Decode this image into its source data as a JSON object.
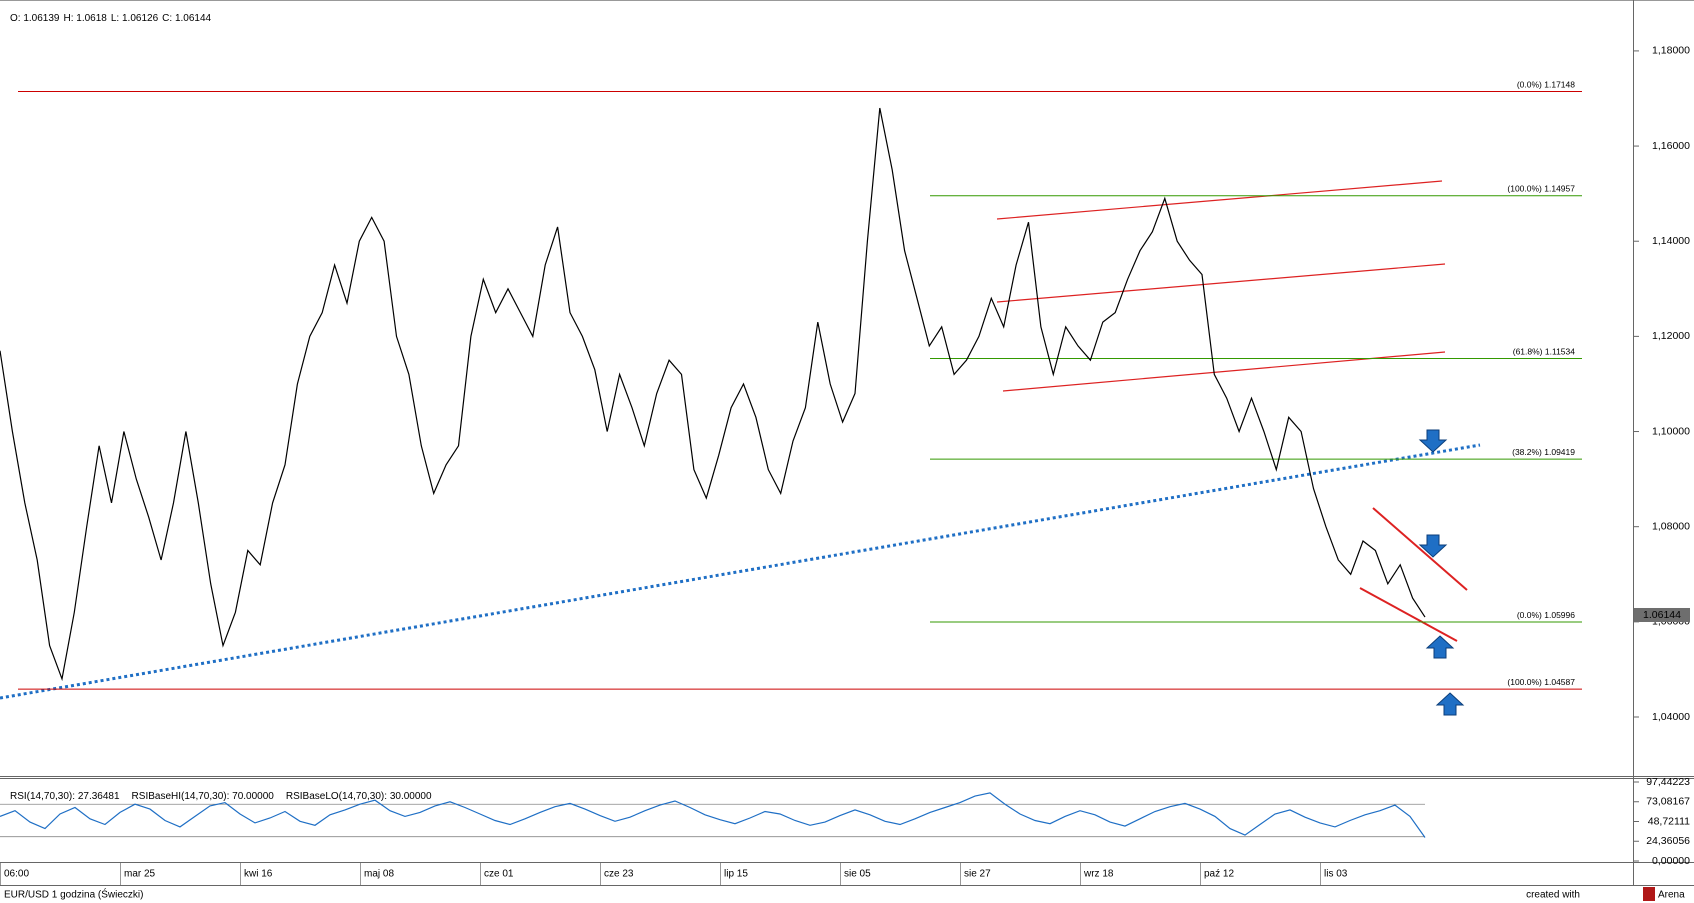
{
  "chart_data": [
    {
      "type": "line",
      "ohlc": [
        {
          "label": "O:",
          "value": 1.06139
        },
        {
          "label": "H:",
          "value": 1.0618
        },
        {
          "label": "L:",
          "value": 1.06126
        },
        {
          "label": "C:",
          "value": 1.06144
        }
      ],
      "values": [
        1.117,
        1.1,
        1.085,
        1.073,
        1.055,
        1.048,
        1.062,
        1.08,
        1.097,
        1.085,
        1.1,
        1.09,
        1.082,
        1.073,
        1.085,
        1.1,
        1.085,
        1.068,
        1.055,
        1.062,
        1.075,
        1.072,
        1.085,
        1.093,
        1.11,
        1.12,
        1.125,
        1.135,
        1.127,
        1.14,
        1.145,
        1.14,
        1.12,
        1.112,
        1.097,
        1.087,
        1.093,
        1.097,
        1.12,
        1.132,
        1.125,
        1.13,
        1.125,
        1.12,
        1.135,
        1.143,
        1.125,
        1.12,
        1.113,
        1.1,
        1.112,
        1.105,
        1.097,
        1.108,
        1.115,
        1.112,
        1.092,
        1.086,
        1.095,
        1.105,
        1.11,
        1.103,
        1.092,
        1.087,
        1.098,
        1.105,
        1.123,
        1.11,
        1.102,
        1.108,
        1.14,
        1.168,
        1.155,
        1.138,
        1.128,
        1.118,
        1.122,
        1.112,
        1.115,
        1.12,
        1.128,
        1.122,
        1.135,
        1.144,
        1.122,
        1.112,
        1.122,
        1.118,
        1.115,
        1.123,
        1.125,
        1.132,
        1.138,
        1.142,
        1.149,
        1.14,
        1.136,
        1.133,
        1.112,
        1.107,
        1.1,
        1.107,
        1.1,
        1.092,
        1.103,
        1.1,
        1.088,
        1.08,
        1.073,
        1.07,
        1.077,
        1.075,
        1.068,
        1.072,
        1.065,
        1.061
      ],
      "color": "#000000",
      "ylim": [
        1.0276,
        1.1907
      ],
      "yticks": [
        {
          "value": 1.04,
          "label": "1,04000"
        },
        {
          "value": 1.06,
          "label": "1,06000"
        },
        {
          "value": 1.08,
          "label": "1,08000"
        },
        {
          "value": 1.1,
          "label": "1,10000"
        },
        {
          "value": 1.12,
          "label": "1,12000"
        },
        {
          "value": 1.14,
          "label": "1,14000"
        },
        {
          "value": 1.16,
          "label": "1,16000"
        },
        {
          "value": 1.18,
          "label": "1,18000"
        }
      ],
      "levels": [
        {
          "label": "(0.0%)",
          "value": 1.17148,
          "color": "#cc0000"
        },
        {
          "label": "(100.0%)",
          "value": 1.14957,
          "color": "#339900"
        },
        {
          "label": "(61.8%)",
          "value": 1.11534,
          "color": "#339900"
        },
        {
          "label": "(38.2%)",
          "value": 1.09419,
          "color": "#339900"
        },
        {
          "label": "(0.0%)",
          "value": 1.05996,
          "color": "#339900"
        },
        {
          "label": "(100.0%)",
          "value": 1.04587,
          "color": "#cc0000"
        }
      ]
    },
    {
      "type": "line",
      "legend": [
        {
          "name": "RSI(14,70,30):",
          "value": 27.36481
        },
        {
          "name": "RSIBaseHI(14,70,30):",
          "value": 70,
          "label": "70.00000"
        },
        {
          "name": "RSIBaseLO(14,70,30):",
          "value": 30,
          "label": "30.00000"
        }
      ],
      "values": [
        55,
        62,
        48,
        40,
        58,
        66,
        52,
        45,
        60,
        70,
        64,
        50,
        42,
        55,
        68,
        72,
        58,
        47,
        53,
        61,
        49,
        44,
        57,
        63,
        70,
        75,
        62,
        55,
        60,
        68,
        73,
        66,
        58,
        50,
        45,
        52,
        60,
        67,
        71,
        64,
        56,
        49,
        54,
        62,
        69,
        74,
        66,
        57,
        51,
        46,
        53,
        61,
        58,
        50,
        44,
        48,
        56,
        63,
        57,
        49,
        45,
        52,
        60,
        66,
        72,
        80,
        84,
        70,
        58,
        50,
        46,
        55,
        62,
        57,
        48,
        43,
        52,
        61,
        67,
        71,
        64,
        55,
        40,
        32,
        45,
        58,
        63,
        54,
        47,
        42,
        50,
        57,
        62,
        69,
        55,
        29
      ],
      "color": "#1f6fc5",
      "ylim": [
        0,
        97.44223
      ],
      "yticks": [
        {
          "value": 0,
          "label": "0,00000"
        },
        {
          "value": 24.36056,
          "label": "24,36056"
        },
        {
          "value": 48.72111,
          "label": "48,72111"
        },
        {
          "value": 73.08167,
          "label": "73,08167"
        },
        {
          "value": 97.44223,
          "label": "97,44223"
        }
      ]
    }
  ],
  "time_axis": {
    "labels": [
      "06:00",
      "mar 25",
      "kwi 16",
      "maj 08",
      "cze 01",
      "cze 23",
      "lip 15",
      "sie 05",
      "sie 27",
      "wrz 18",
      "paź 12",
      "lis 03"
    ]
  },
  "status": {
    "instrument": "EUR/USD 1 godzina (Świeczki)",
    "credit": "created with",
    "brand": "Arena"
  }
}
